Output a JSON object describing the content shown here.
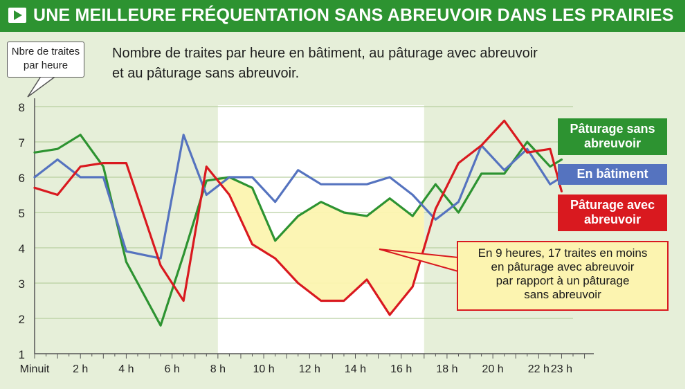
{
  "title": "UNE MEILLEURE FRÉQUENTATION SANS ABREUVOIR DANS LES PRAIRIES",
  "subtitle_line1": "Nombre de traites par heure en bâtiment, au pâturage avec abreuvoir",
  "subtitle_line2": "et au pâturage sans abreuvoir.",
  "y_unit_line1": "Nbre de traites",
  "y_unit_line2": "par heure",
  "legend": {
    "sans_line1": "Pâturage sans",
    "sans_line2": "abreuvoir",
    "batiment": "En bâtiment",
    "avec_line1": "Pâturage avec",
    "avec_line2": "abreuvoir"
  },
  "annotation": {
    "line1": "En 9 heures, 17 traites en moins",
    "line2": "en pâturage avec abreuvoir",
    "line3": "par rapport à un pâturage",
    "line4": "sans abreuvoir"
  },
  "colors": {
    "green": "#2d9331",
    "blue": "#5573bf",
    "red": "#d9191f",
    "highlight_band": "#ffffff",
    "shaded_gap": "#fcf4b0"
  },
  "chart_data": {
    "type": "line",
    "ylim": [
      1,
      8
    ],
    "y_ticks": [
      "1",
      "2",
      "3",
      "4",
      "5",
      "6",
      "7",
      "8"
    ],
    "xlim": [
      0,
      23.5
    ],
    "x_tick_labels": [
      {
        "x": 0,
        "label": "Minuit"
      },
      {
        "x": 2,
        "label": "2 h"
      },
      {
        "x": 4,
        "label": "4 h"
      },
      {
        "x": 6,
        "label": "6 h"
      },
      {
        "x": 8,
        "label": "8 h"
      },
      {
        "x": 10,
        "label": "10 h"
      },
      {
        "x": 12,
        "label": "12 h"
      },
      {
        "x": 14,
        "label": "14 h"
      },
      {
        "x": 16,
        "label": "16 h"
      },
      {
        "x": 18,
        "label": "18 h"
      },
      {
        "x": 20,
        "label": "20 h"
      },
      {
        "x": 22,
        "label": "22 h"
      },
      {
        "x": 23,
        "label": "23 h"
      }
    ],
    "highlight_range": [
      8,
      17
    ],
    "gap_between": [
      "sans_abreuvoir",
      "avec_abreuvoir"
    ],
    "series": [
      {
        "id": "sans_abreuvoir",
        "name": "Pâturage sans abreuvoir",
        "color": "#2d9331",
        "x": [
          0,
          1,
          2,
          3,
          4,
          5.5,
          6.5,
          7.5,
          8.5,
          9.5,
          10.5,
          11.5,
          12.5,
          13.5,
          14.5,
          15.5,
          16.5,
          17.5,
          18.5,
          19.5,
          20.5,
          21.5,
          22.5,
          23
        ],
        "values": [
          6.7,
          6.8,
          7.2,
          6.3,
          3.6,
          1.8,
          3.8,
          5.9,
          6.0,
          5.7,
          4.2,
          4.9,
          5.3,
          5.0,
          4.9,
          5.4,
          4.9,
          5.8,
          5.0,
          6.1,
          6.1,
          7.0,
          6.3,
          6.5
        ]
      },
      {
        "id": "batiment",
        "name": "En bâtiment",
        "color": "#5573bf",
        "x": [
          0,
          1,
          2,
          3,
          4,
          5.5,
          6.5,
          7.5,
          8.5,
          9.5,
          10.5,
          11.5,
          12.5,
          13.5,
          14.5,
          15.5,
          16.5,
          17.5,
          18.5,
          19.5,
          20.5,
          21.5,
          22.5,
          23
        ],
        "values": [
          6.0,
          6.5,
          6.0,
          6.0,
          3.9,
          3.7,
          7.2,
          5.5,
          6.0,
          6.0,
          5.3,
          6.2,
          5.8,
          5.8,
          5.8,
          6.0,
          5.5,
          4.8,
          5.3,
          6.9,
          6.2,
          6.8,
          5.8,
          6.0
        ]
      },
      {
        "id": "avec_abreuvoir",
        "name": "Pâturage avec abreuvoir",
        "color": "#d9191f",
        "x": [
          0,
          1,
          2,
          3,
          4,
          5.5,
          6.5,
          7.5,
          8.5,
          9.5,
          10.5,
          11.5,
          12.5,
          13.5,
          14.5,
          15.5,
          16.5,
          17.5,
          18.5,
          19.5,
          20.5,
          21.5,
          22.5,
          23
        ],
        "values": [
          5.7,
          5.5,
          6.3,
          6.4,
          6.4,
          3.5,
          2.5,
          6.3,
          5.5,
          4.1,
          3.7,
          3.0,
          2.5,
          2.5,
          3.1,
          2.1,
          2.9,
          5.1,
          6.4,
          6.9,
          7.6,
          6.7,
          6.8,
          5.6
        ]
      }
    ]
  }
}
